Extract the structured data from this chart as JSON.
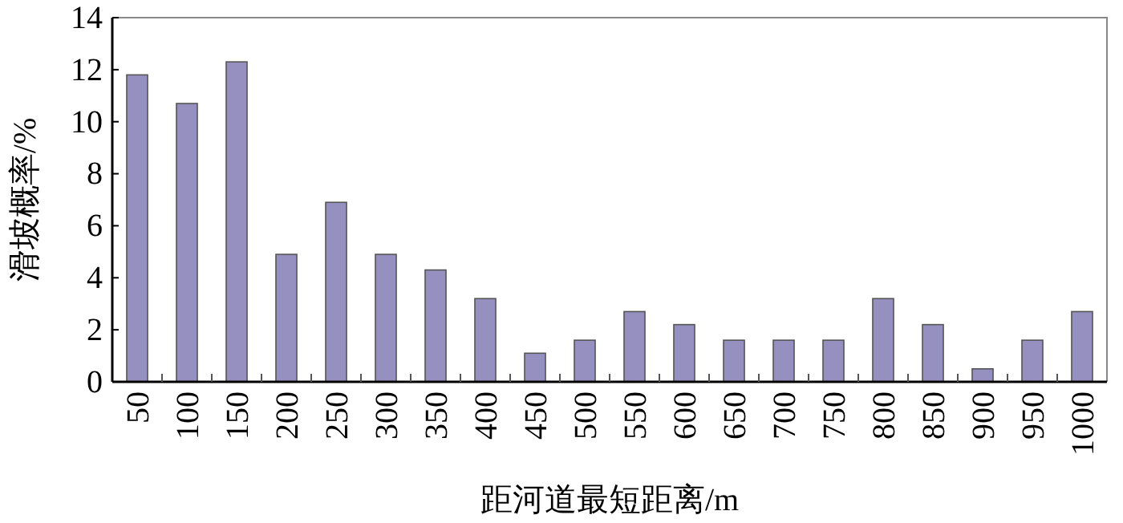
{
  "chart_data": {
    "type": "bar",
    "xlabel": "距河道最短距离/m",
    "ylabel": "滑坡概率/%",
    "categories": [
      "50",
      "100",
      "150",
      "200",
      "250",
      "300",
      "350",
      "400",
      "450",
      "500",
      "550",
      "600",
      "650",
      "700",
      "750",
      "800",
      "850",
      "900",
      "950",
      "1000"
    ],
    "values": [
      11.8,
      10.7,
      12.3,
      4.9,
      6.9,
      4.9,
      4.3,
      3.2,
      1.1,
      1.6,
      2.7,
      2.2,
      1.6,
      1.6,
      1.6,
      3.2,
      2.2,
      0.5,
      1.6,
      2.7
    ],
    "color": "#9690c0",
    "ylim": [
      0,
      14
    ],
    "yticks": [
      0,
      2,
      4,
      6,
      8,
      10,
      12,
      14
    ],
    "grid": false
  }
}
